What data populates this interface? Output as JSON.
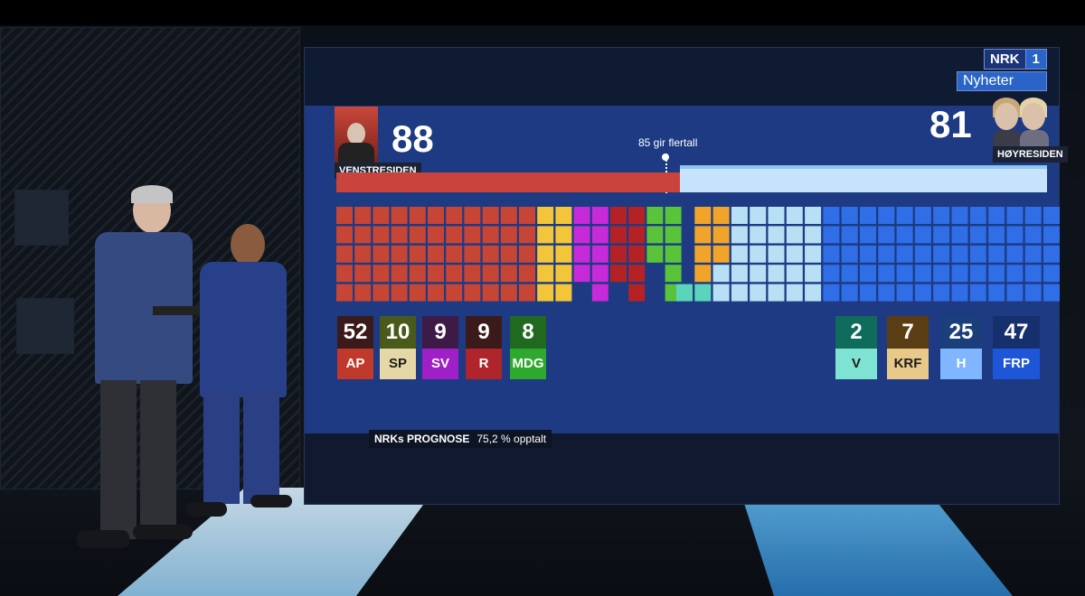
{
  "broadcaster": {
    "name": "NRK",
    "channel": "1",
    "program": "Nyheter"
  },
  "majority_label": "85 gir flertall",
  "blocs": {
    "left": {
      "name": "VENSTRESIDEN",
      "seats": "88",
      "color": "#c8443d"
    },
    "right": {
      "name": "HØYRESIDEN",
      "seats": "81",
      "color": "#c7e3fb"
    }
  },
  "left_parties": [
    {
      "abbr": "AP",
      "seats": "52",
      "color": "#c0392b",
      "top": "#3a1a1a"
    },
    {
      "abbr": "SP",
      "seats": "10",
      "color": "#e6d8a6",
      "top": "#4a5a1a",
      "dark": true
    },
    {
      "abbr": "SV",
      "seats": "9",
      "color": "#a020c8",
      "top": "#3e1a46"
    },
    {
      "abbr": "R",
      "seats": "9",
      "color": "#b0242c",
      "top": "#3a1a1a"
    },
    {
      "abbr": "MDG",
      "seats": "8",
      "color": "#2fa82f",
      "top": "#1f6a1f"
    }
  ],
  "right_parties": [
    {
      "abbr": "V",
      "seats": "2",
      "color": "#7fe3d4",
      "top": "#0f6b5a",
      "dark": true
    },
    {
      "abbr": "KRF",
      "seats": "7",
      "color": "#e8c98a",
      "top": "#5a3d12",
      "dark": true
    },
    {
      "abbr": "H",
      "seats": "25",
      "color": "#7fb6ff",
      "top": "#1a3f7a"
    },
    {
      "abbr": "FRP",
      "seats": "47",
      "color": "#1e56d8",
      "top": "#16306e"
    }
  ],
  "prognose": {
    "label": "NRKs PROGNOSE",
    "counted": "75,2 % opptalt"
  },
  "colors": {
    "ap": "#c74535",
    "sp": "#f3c63a",
    "sv": "#c62ad9",
    "r": "#b52226",
    "mdg": "#59c43a",
    "v": "#5cd4bb",
    "krf": "#f0a52a",
    "h": "#b7e0f4",
    "frp": "#2f6ee6"
  }
}
